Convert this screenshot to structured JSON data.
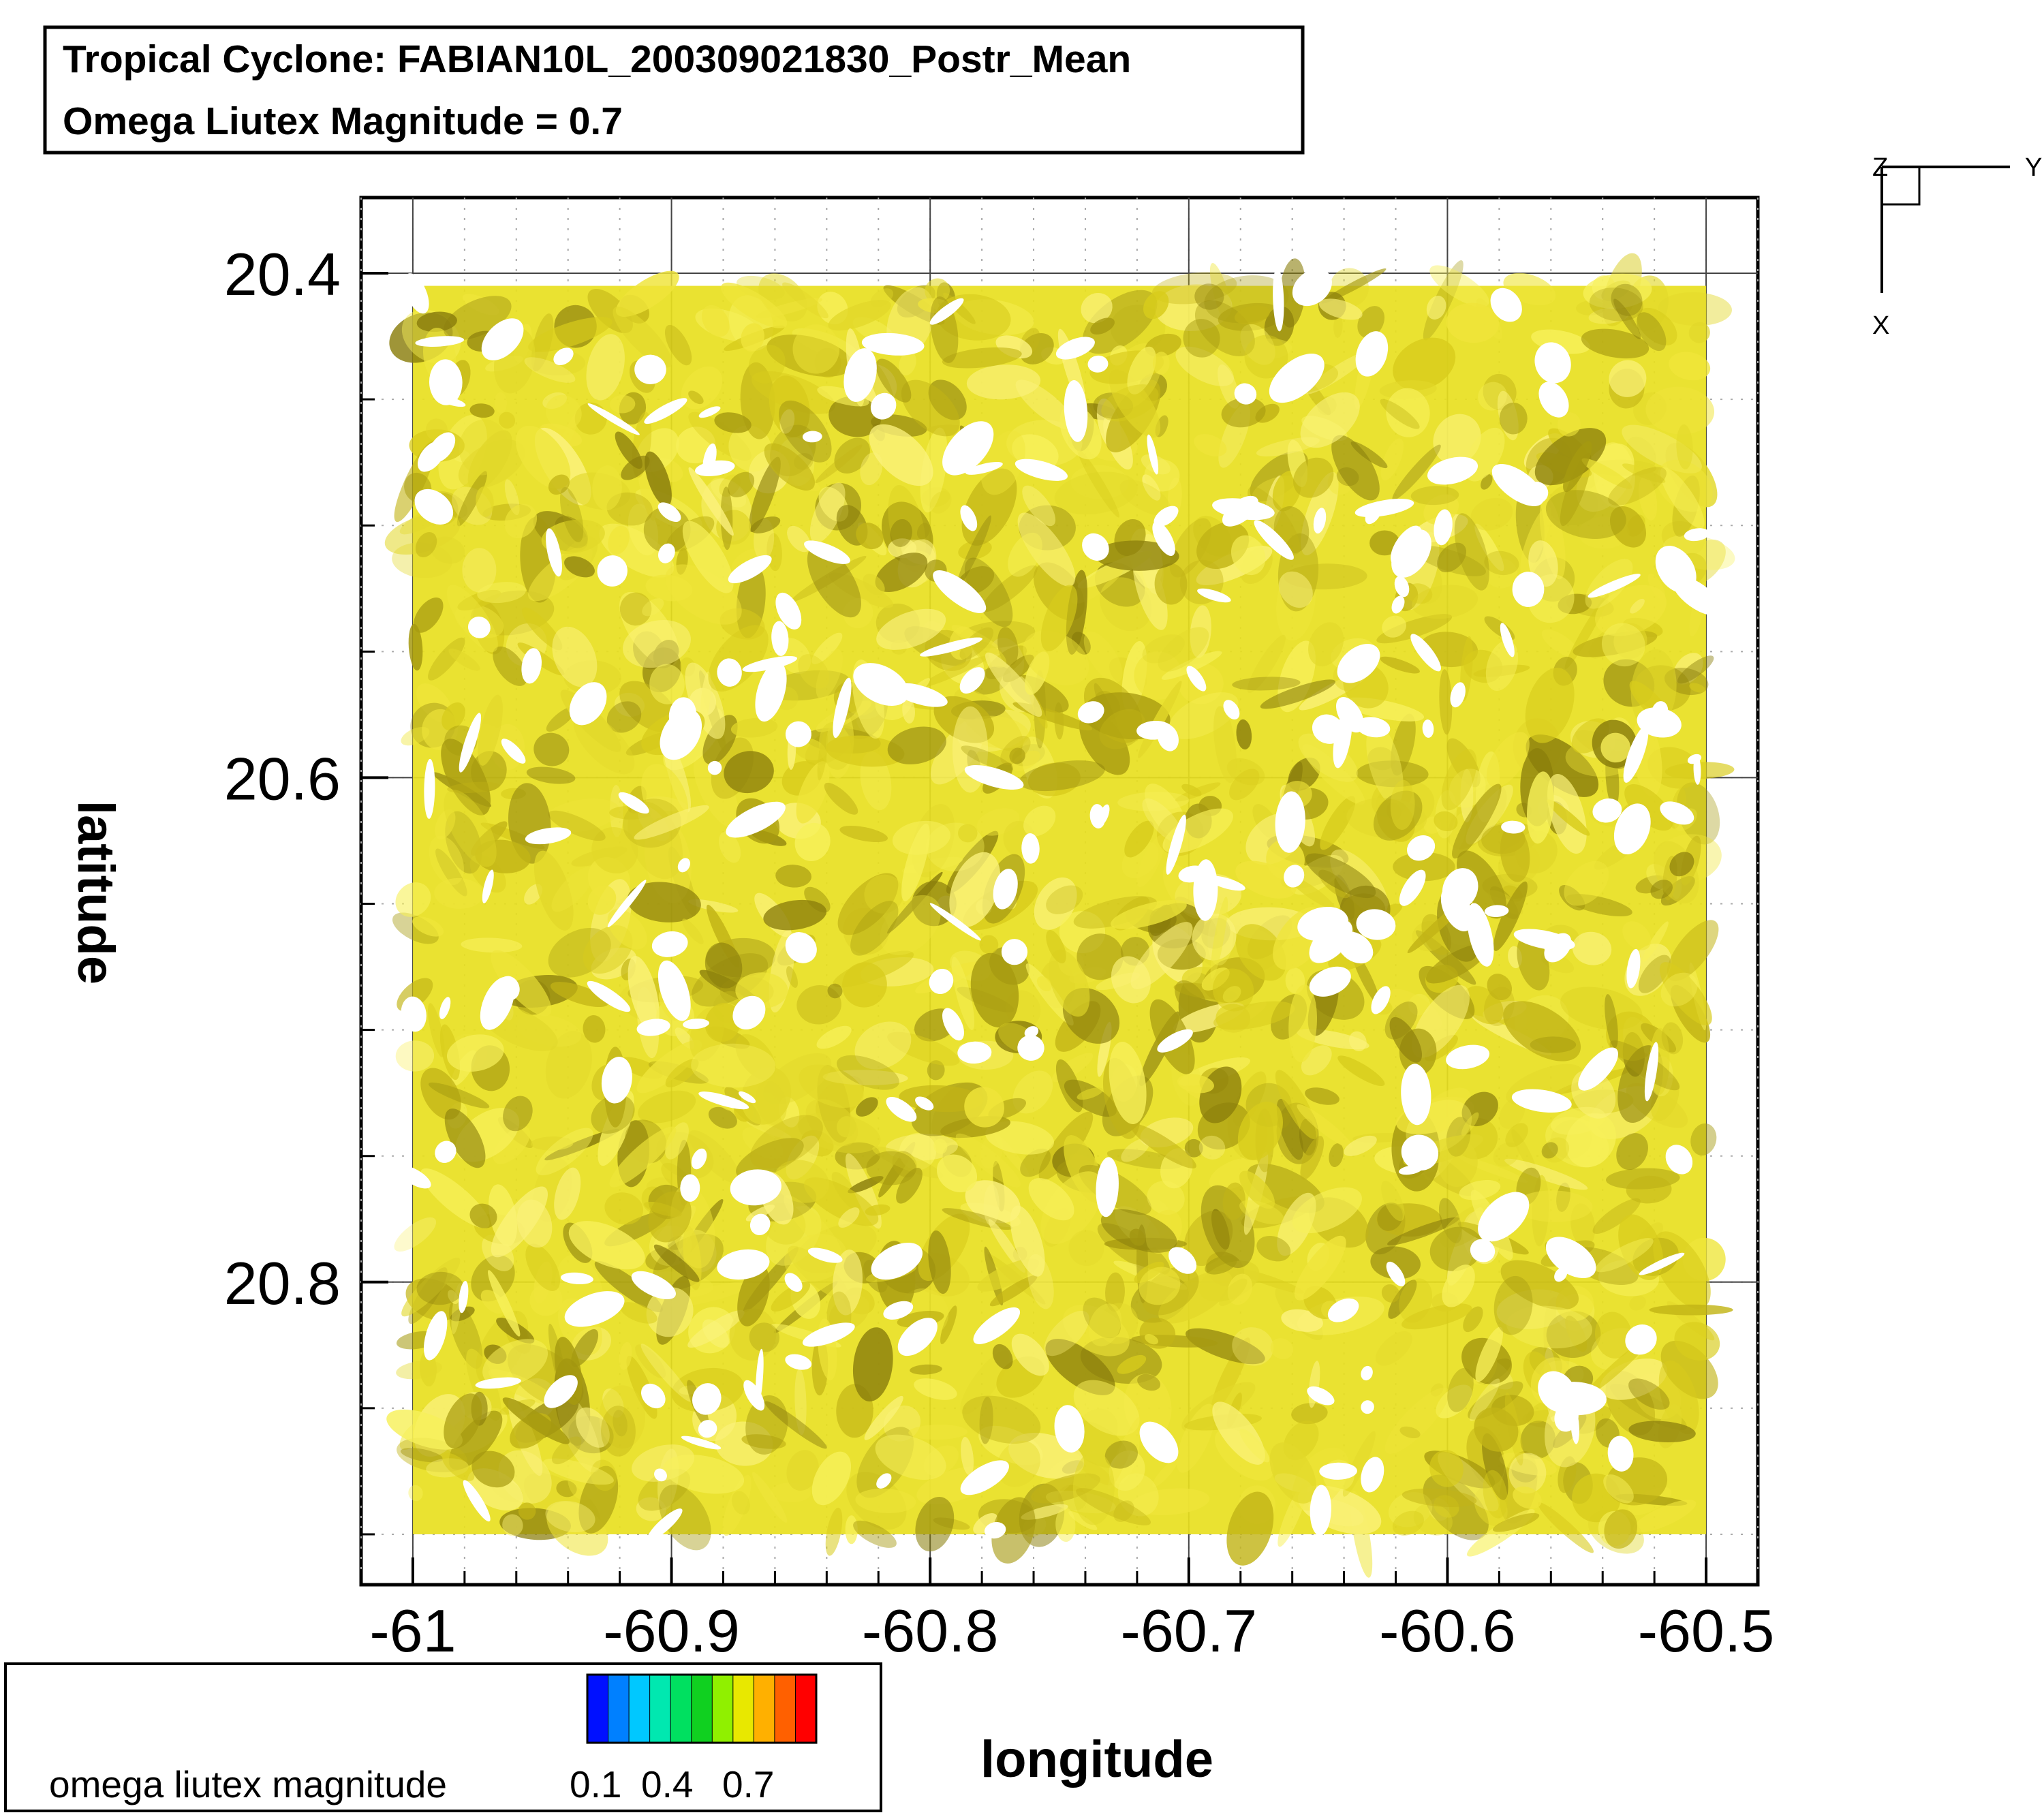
{
  "title_box": {
    "line1": "Tropical Cyclone: FABIAN10L_200309021830_Postr_Mean",
    "line2": "Omega Liutex Magnitude = 0.7"
  },
  "chart_data": {
    "type": "3d-isosurface",
    "xlabel": "longitude",
    "ylabel": "latitude",
    "xlim": [
      -61.02,
      -60.48
    ],
    "ylim": [
      20.92,
      20.37
    ],
    "y_axis_inverted": true,
    "x_ticks": [
      -61,
      -60.9,
      -60.8,
      -60.7,
      -60.6,
      -60.5
    ],
    "x_tick_labels": [
      "-61",
      "-60.9",
      "-60.8",
      "-60.7",
      "-60.6",
      "-60.5"
    ],
    "y_ticks": [
      20.4,
      20.6,
      20.8
    ],
    "y_tick_labels": [
      "20.4",
      "20.6",
      "20.8"
    ],
    "x_minor_step": 0.02,
    "y_minor_step": 0.05,
    "grid": true,
    "isosurface": {
      "variable": "omega liutex magnitude",
      "value": 0.7,
      "color": "#e8e020",
      "extent_x": [
        -61.0,
        -60.5
      ],
      "extent_y": [
        20.405,
        20.9
      ]
    },
    "legend": {
      "placement": "bottom-left",
      "label": "omega liutex magnitude",
      "tick_labels": [
        "0.1",
        "0.4",
        "0.7"
      ],
      "colors": [
        "#0010ff",
        "#0080ff",
        "#00c8ff",
        "#00e8b0",
        "#00e060",
        "#10d020",
        "#90f000",
        "#e8e800",
        "#ffb000",
        "#ff6000",
        "#ff0000"
      ]
    },
    "axis_triad": {
      "labels": [
        "Z",
        "Y",
        "X"
      ]
    }
  }
}
